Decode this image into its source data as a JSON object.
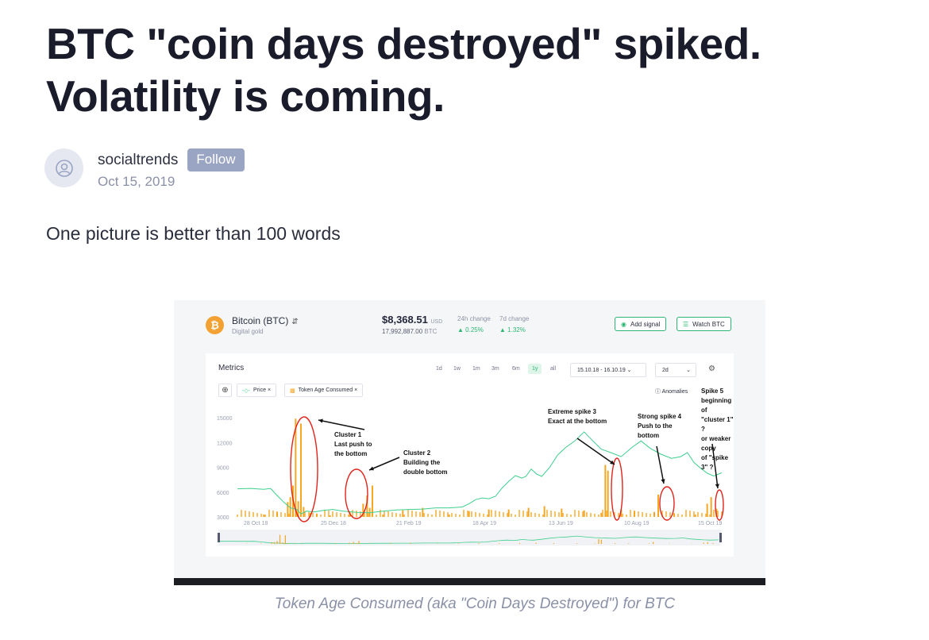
{
  "article": {
    "title": "BTC \"coin days destroyed\" spiked. Volatility is coming.",
    "author": "socialtrends",
    "follow_label": "Follow",
    "date": "Oct 15, 2019",
    "lead": "One picture is better than 100 words",
    "caption": "Token Age Consumed (aka \"Coin Days Destroyed\") for BTC"
  },
  "screenshot": {
    "coin": {
      "name": "Bitcoin (BTC)",
      "subtitle": "Digital gold",
      "logo": "₿",
      "price": "$8,368.51",
      "price_currency": "USD",
      "volume": "17,992,887.00",
      "volume_currency": "BTC",
      "change_24h_label": "24h change",
      "change_24h": "0.25%",
      "change_7d_label": "7d change",
      "change_7d": "1.32%"
    },
    "buttons": {
      "add_signal": "Add signal",
      "watch": "Watch BTC"
    },
    "metrics": {
      "label": "Metrics",
      "periods": [
        "1d",
        "1w",
        "1m",
        "3m",
        "6m",
        "1y",
        "all"
      ],
      "active_period": "1y",
      "date_range": "15.10.18 - 16.10.19",
      "interval": "2d",
      "chips": [
        "Price",
        "Token Age Consumed"
      ],
      "anomalies_label": "Anomalies"
    },
    "annotations": [
      {
        "lines": [
          "Cluster 1",
          "Last push to",
          "the bottom"
        ]
      },
      {
        "lines": [
          "Cluster 2",
          "Building the",
          "double bottom"
        ]
      },
      {
        "lines": [
          "Extreme spike 3",
          "Exact at the bottom"
        ]
      },
      {
        "lines": [
          "Strong spike 4",
          "Push to the",
          "bottom"
        ]
      },
      {
        "lines": [
          "Spike 5",
          "beginning of",
          "\"cluster 1\" ?",
          "or weaker copy",
          "of \"spike 3\" ?"
        ]
      }
    ],
    "colors": {
      "price_line": "#3ecf8e",
      "bars": "#f5a623",
      "annotation_circle": "#e0241b",
      "accent": "#2bb673"
    }
  },
  "chart_data": {
    "type": "bar",
    "xlabel": "",
    "ylabel": "",
    "y_ticks": [
      3000,
      6000,
      9000,
      12000,
      15000
    ],
    "ylim": [
      3000,
      15500
    ],
    "x_ticks": [
      "28 Oct 18",
      "25 Dec 18",
      "21 Feb 19",
      "18 Apr 19",
      "13 Jun 19",
      "10 Aug 19",
      "15 Oct 19"
    ],
    "x_range": [
      0,
      366
    ],
    "series": [
      {
        "name": "Price",
        "kind": "line",
        "x": [
          0,
          10,
          20,
          25,
          30,
          35,
          40,
          45,
          48,
          52,
          58,
          65,
          72,
          80,
          90,
          100,
          110,
          120,
          130,
          140,
          150,
          160,
          170,
          175,
          180,
          185,
          190,
          195,
          200,
          205,
          210,
          215,
          218,
          222,
          226,
          230,
          236,
          242,
          248,
          255,
          262,
          268,
          275,
          282,
          290,
          298,
          305,
          312,
          320,
          328,
          335,
          340,
          345,
          350,
          355,
          360,
          366
        ],
        "y": [
          6400,
          6450,
          6350,
          6450,
          5600,
          4800,
          4100,
          3900,
          3350,
          3700,
          3600,
          3800,
          3900,
          3700,
          3550,
          3500,
          3700,
          3850,
          3900,
          3950,
          4100,
          4100,
          4200,
          4600,
          5100,
          5300,
          5200,
          5500,
          6500,
          7300,
          8000,
          7700,
          7900,
          8800,
          8200,
          7900,
          9000,
          10500,
          11400,
          12200,
          13300,
          12300,
          11200,
          10800,
          10300,
          11400,
          12200,
          11300,
          10600,
          10100,
          10300,
          10800,
          9600,
          8900,
          8300,
          7950,
          8350
        ]
      },
      {
        "name": "Token Age Consumed",
        "kind": "bar",
        "x": [
          20,
          30,
          38,
          40,
          42,
          44,
          46,
          48,
          50,
          55,
          60,
          70,
          85,
          95,
          98,
          100,
          102,
          110,
          125,
          140,
          160,
          175,
          190,
          205,
          220,
          232,
          245,
          262,
          275,
          278,
          280,
          290,
          300,
          315,
          318,
          330,
          346,
          355,
          358,
          362
        ],
        "y": [
          3300,
          3600,
          4800,
          5400,
          6800,
          14900,
          4900,
          14300,
          4200,
          3500,
          3400,
          3200,
          3600,
          4600,
          5600,
          4100,
          6800,
          3300,
          3800,
          4100,
          3300,
          3700,
          3900,
          3900,
          4100,
          4300,
          4000,
          3800,
          3500,
          9300,
          8600,
          3900,
          3700,
          3600,
          5700,
          3400,
          3300,
          4600,
          5400,
          4000
        ]
      }
    ],
    "legend": "top-left"
  }
}
